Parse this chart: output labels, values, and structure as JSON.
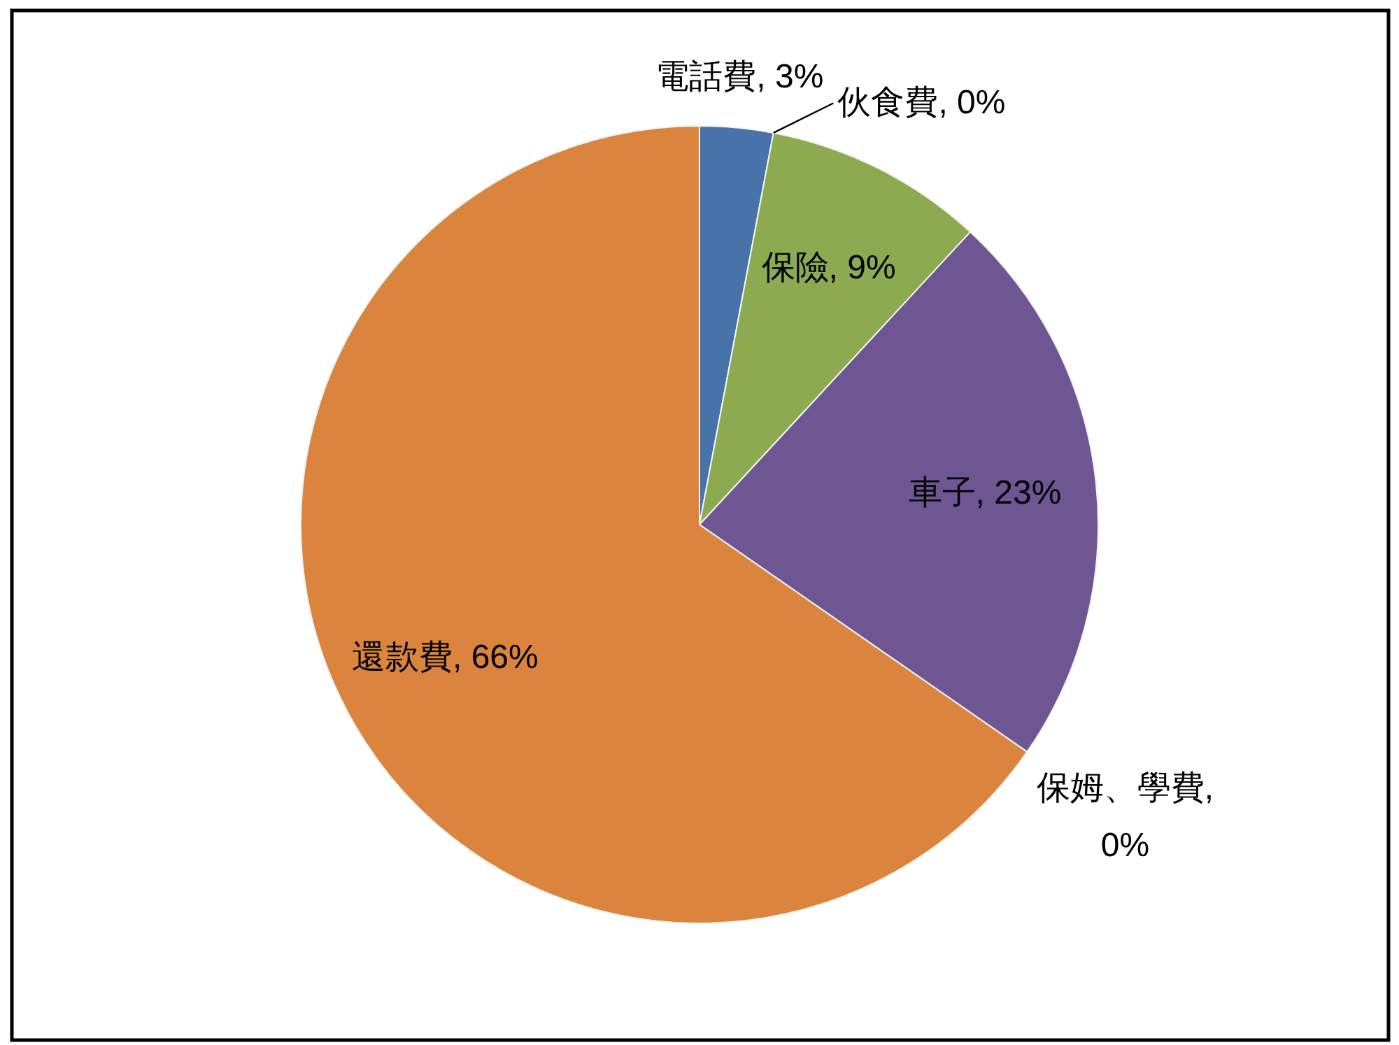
{
  "chart_data": {
    "type": "pie",
    "categories": [
      "電話費",
      "伙食費",
      "保險",
      "車子",
      "保姆、學費",
      "還款費"
    ],
    "values": [
      3,
      0,
      9,
      23,
      0,
      66
    ],
    "value_labels": [
      ", 3%",
      ", 0%",
      ", 9%",
      ", 23%",
      ", 0%",
      ", 66%"
    ],
    "colors": [
      "#4873a9",
      null,
      "#8caa4f",
      "#6e5692",
      null,
      "#db843d"
    ]
  }
}
